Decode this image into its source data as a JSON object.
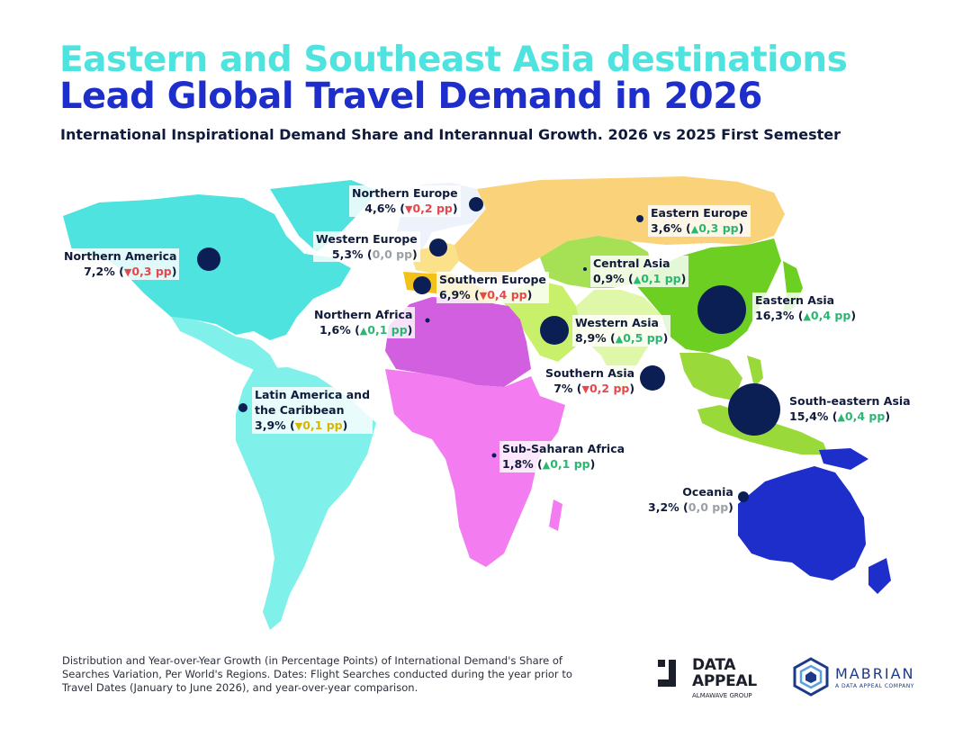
{
  "title_line1": "Eastern and Southeast Asia destinations",
  "title_line2": "Lead Global Travel Demand in 2026",
  "subtitle": "International Inspirational Demand Share and Interannual Growth. 2026 vs 2025 First Semester",
  "regions": [
    {
      "name": "Northern Europe",
      "share": "4,6%",
      "change": "0,2 pp",
      "trend": "down",
      "color": "#eef3fb"
    },
    {
      "name": "Eastern Europe",
      "share": "3,6%",
      "change": "0,3 pp",
      "trend": "up",
      "color": "#f9d27a"
    },
    {
      "name": "Western Europe",
      "share": "5,3%",
      "change": "0,0 pp",
      "trend": "flat",
      "color": "#fbe18a"
    },
    {
      "name": "Northern America",
      "share": "7,2%",
      "change": "0,3 pp",
      "trend": "down",
      "color": "#4fe3df"
    },
    {
      "name": "Central Asia",
      "share": "0,9%",
      "change": "0,1 pp",
      "trend": "up",
      "color": "#a5e055"
    },
    {
      "name": "Southern Europe",
      "share": "6,9%",
      "change": "0,4 pp",
      "trend": "down",
      "color": "#f2c21a"
    },
    {
      "name": "Eastern Asia",
      "share": "16,3%",
      "change": "0,4 pp",
      "trend": "up",
      "color": "#6ccf22"
    },
    {
      "name": "Northern Africa",
      "share": "1,6%",
      "change": "0,1 pp",
      "trend": "up",
      "color": "#d25ee0"
    },
    {
      "name": "Western Asia",
      "share": "8,9%",
      "change": "0,5 pp",
      "trend": "up",
      "color": "#c8f06a"
    },
    {
      "name": "Southern Asia",
      "share": "7%",
      "change": "0,2 pp",
      "trend": "down",
      "color": "#dff7a8"
    },
    {
      "name": "Latin America and the Caribbean",
      "name_line1": "Latin America and",
      "name_line2": "the Caribbean",
      "share": "3,9%",
      "change": "0,1 pp",
      "trend": "down-yellow",
      "color": "#7ff0ea"
    },
    {
      "name": "South-eastern Asia",
      "share": "15,4%",
      "change": "0,4 pp",
      "trend": "up",
      "color": "#99d93a"
    },
    {
      "name": "Sub-Saharan Africa",
      "share": "1,8%",
      "change": "0,1 pp",
      "trend": "up",
      "color": "#f27cf0"
    },
    {
      "name": "Oceania",
      "share": "3,2%",
      "change": "0,0 pp",
      "trend": "flat",
      "color": "#1d2ecb"
    }
  ],
  "arrows": {
    "up": "▲",
    "down": "▼"
  },
  "footer_text": "Distribution and Year-over-Year Growth (in Percentage Points) of International Demand's Share of Searches Variation, Per World's Regions. Dates: Flight Searches conducted  during the year prior to Travel Dates (January to June 2026), and year-over-year comparison.",
  "logo_data_appeal": {
    "line1": "DATA",
    "line2": "APPEAL",
    "line3": "ALMAWAVE GROUP"
  },
  "logo_mabrian": {
    "line1": "MABRIAN",
    "line2": "A DATA APPEAL COMPANY"
  },
  "colors": {
    "title_cyan": "#4fe3df",
    "title_blue": "#1d2ecb",
    "bubble": "#0b1f55",
    "up": "#2bb673",
    "down": "#e5484d",
    "flat": "#9aa0a6",
    "down_yellow": "#d9b400"
  }
}
